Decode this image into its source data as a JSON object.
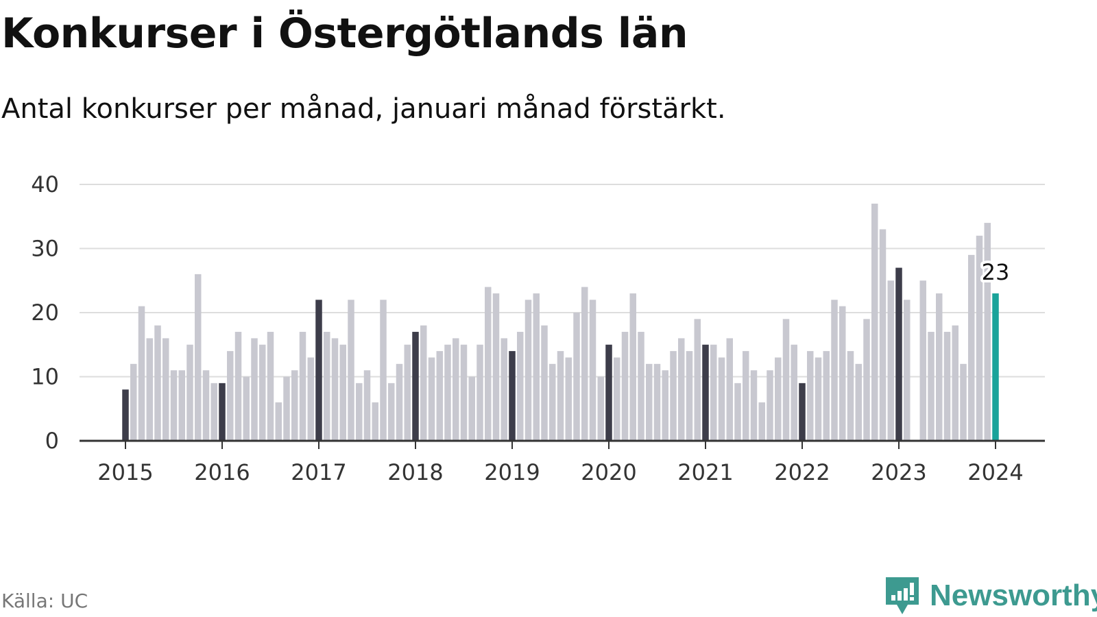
{
  "header": {
    "title": "Konkurser i Östergötlands län",
    "subtitle": "Antal konkurser per månad, januari månad förstärkt."
  },
  "footer": {
    "source": "Källa: UC",
    "brand": "Newsworthy"
  },
  "colors": {
    "bar_default": "#c8c8d0",
    "bar_january": "#3d3d4a",
    "bar_latest": "#1aa39a",
    "grid": "#dddddd",
    "axis": "#333333",
    "brand": "#3d9a90"
  },
  "icons": {
    "brand_logo": "newsworthy-logo-icon"
  },
  "chart_data": {
    "type": "bar",
    "ylim": [
      0,
      40
    ],
    "yticks": [
      0,
      10,
      20,
      30,
      40
    ],
    "xticks": [
      "2015",
      "2016",
      "2017",
      "2018",
      "2019",
      "2020",
      "2021",
      "2022",
      "2023",
      "2024"
    ],
    "grid": true,
    "start": "2015-01",
    "highlight_label": "23",
    "values": [
      8,
      12,
      21,
      16,
      18,
      16,
      11,
      11,
      15,
      26,
      11,
      9,
      9,
      14,
      17,
      10,
      16,
      15,
      17,
      6,
      10,
      11,
      17,
      13,
      22,
      17,
      16,
      15,
      22,
      9,
      11,
      6,
      22,
      9,
      12,
      15,
      17,
      18,
      13,
      14,
      15,
      16,
      15,
      10,
      15,
      24,
      23,
      16,
      14,
      17,
      22,
      23,
      18,
      12,
      14,
      13,
      20,
      24,
      22,
      10,
      15,
      13,
      17,
      23,
      17,
      12,
      12,
      11,
      14,
      16,
      14,
      19,
      15,
      15,
      13,
      16,
      9,
      14,
      11,
      6,
      11,
      13,
      19,
      15,
      9,
      14,
      13,
      14,
      22,
      21,
      14,
      12,
      19,
      37,
      33,
      25,
      27,
      22,
      0,
      25,
      17,
      23,
      17,
      18,
      12,
      29,
      32,
      34,
      23
    ]
  }
}
